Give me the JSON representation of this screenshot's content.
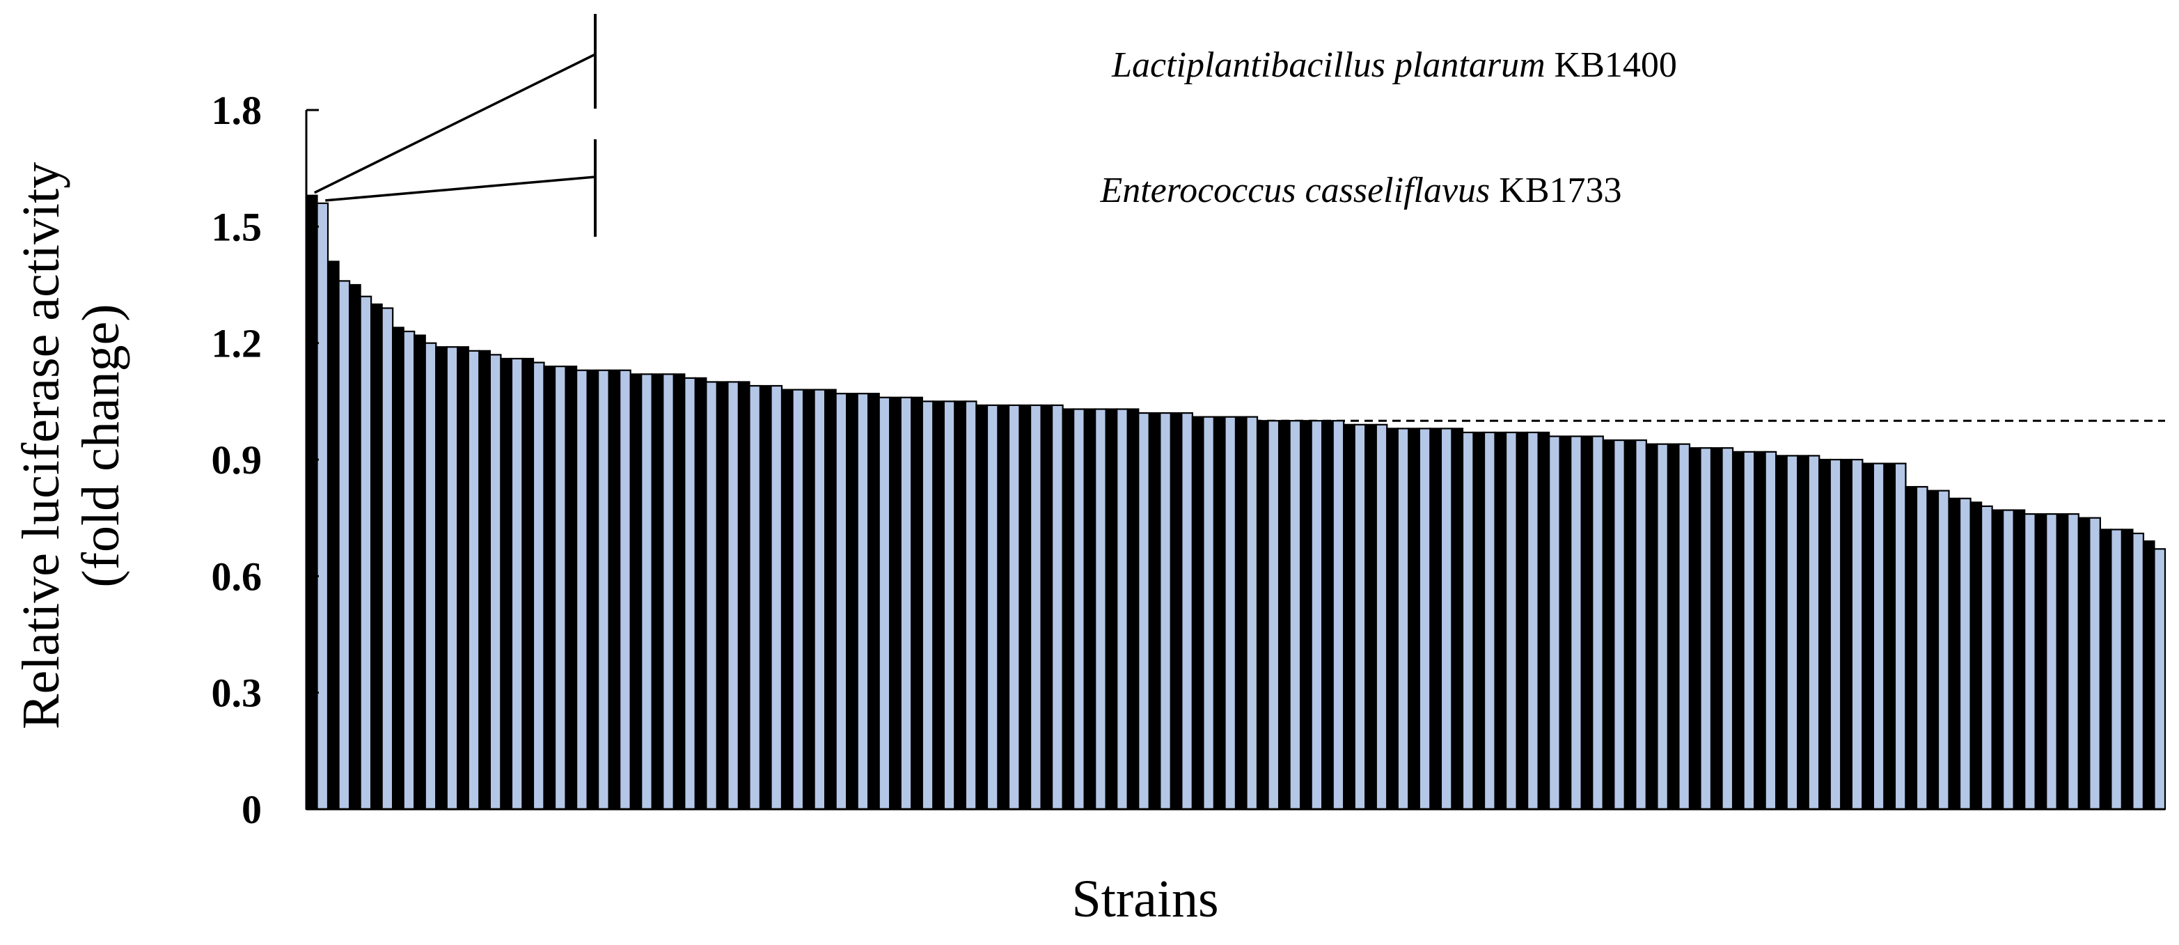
{
  "chart_data": {
    "type": "bar",
    "title": "",
    "xlabel": "Strains",
    "ylabel_line1": "Relative luciferase activity",
    "ylabel_line2": "(fold change)",
    "ylim": [
      0,
      1.8
    ],
    "yticks": [
      {
        "value": 0,
        "label": "0"
      },
      {
        "value": 0.3,
        "label": "0.3"
      },
      {
        "value": 0.6,
        "label": "0.6"
      },
      {
        "value": 0.9,
        "label": "0.9"
      },
      {
        "value": 1.2,
        "label": "1.2"
      },
      {
        "value": 1.5,
        "label": "1.5"
      },
      {
        "value": 1.8,
        "label": "1.8"
      }
    ],
    "reference_line": 1.0,
    "bar_colors": [
      "#000000",
      "#b4c7e7"
    ],
    "values": [
      1.58,
      1.56,
      1.41,
      1.36,
      1.35,
      1.32,
      1.3,
      1.29,
      1.24,
      1.23,
      1.22,
      1.2,
      1.19,
      1.19,
      1.19,
      1.18,
      1.18,
      1.17,
      1.16,
      1.16,
      1.16,
      1.15,
      1.14,
      1.14,
      1.14,
      1.13,
      1.13,
      1.13,
      1.13,
      1.13,
      1.12,
      1.12,
      1.12,
      1.12,
      1.12,
      1.11,
      1.11,
      1.1,
      1.1,
      1.1,
      1.1,
      1.09,
      1.09,
      1.09,
      1.08,
      1.08,
      1.08,
      1.08,
      1.08,
      1.07,
      1.07,
      1.07,
      1.07,
      1.06,
      1.06,
      1.06,
      1.06,
      1.05,
      1.05,
      1.05,
      1.05,
      1.05,
      1.04,
      1.04,
      1.04,
      1.04,
      1.04,
      1.04,
      1.04,
      1.04,
      1.03,
      1.03,
      1.03,
      1.03,
      1.03,
      1.03,
      1.03,
      1.02,
      1.02,
      1.02,
      1.02,
      1.02,
      1.01,
      1.01,
      1.01,
      1.01,
      1.01,
      1.01,
      1.0,
      1.0,
      1.0,
      1.0,
      1.0,
      1.0,
      1.0,
      1.0,
      0.99,
      0.99,
      0.99,
      0.99,
      0.98,
      0.98,
      0.98,
      0.98,
      0.98,
      0.98,
      0.98,
      0.97,
      0.97,
      0.97,
      0.97,
      0.97,
      0.97,
      0.97,
      0.97,
      0.96,
      0.96,
      0.96,
      0.96,
      0.96,
      0.95,
      0.95,
      0.95,
      0.95,
      0.94,
      0.94,
      0.94,
      0.94,
      0.93,
      0.93,
      0.93,
      0.93,
      0.92,
      0.92,
      0.92,
      0.92,
      0.91,
      0.91,
      0.91,
      0.91,
      0.9,
      0.9,
      0.9,
      0.9,
      0.89,
      0.89,
      0.89,
      0.89,
      0.83,
      0.83,
      0.82,
      0.82,
      0.8,
      0.8,
      0.79,
      0.78,
      0.77,
      0.77,
      0.77,
      0.76,
      0.76,
      0.76,
      0.76,
      0.76,
      0.75,
      0.75,
      0.72,
      0.72,
      0.72,
      0.71,
      0.69,
      0.67
    ],
    "annotations": [
      {
        "italic_text": "Lactiplantibacillus plantarum",
        "suffix": " KB1400",
        "bar_index": 0
      },
      {
        "italic_text": "Enterococcus casseliflavus",
        "suffix": " KB1733",
        "bar_index": 1
      }
    ]
  }
}
